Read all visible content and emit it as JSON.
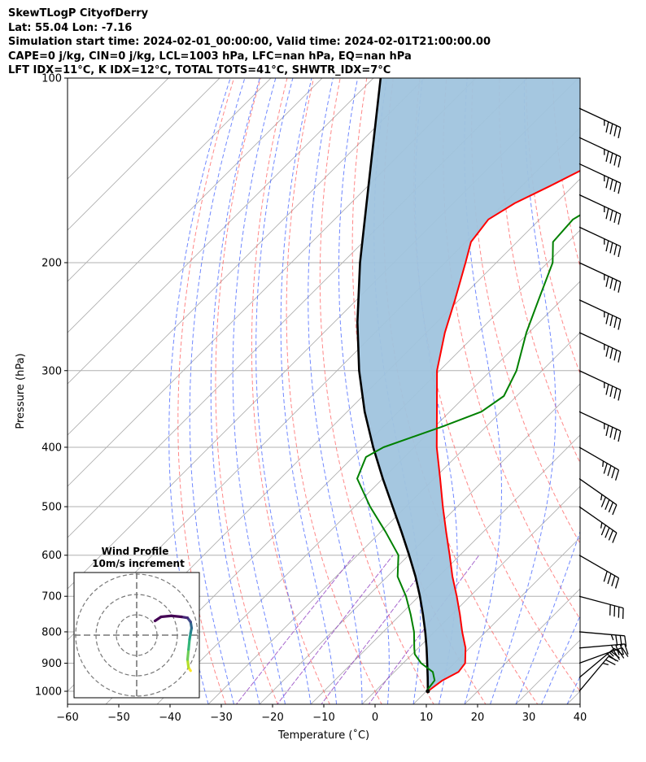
{
  "header": {
    "line1": "SkewTLogP CityofDerry",
    "line2": "Lat: 55.04   Lon: -7.16",
    "line3": "Simulation start time: 2024-02-01_00:00:00, Valid time: 2024-02-01T21:00:00.00",
    "line4": "CAPE=0 j/kg, CIN=0 j/kg, LCL=1003 hPa, LFC=nan hPa, EQ=nan hPa",
    "line5": "LFT IDX=11°C, K IDX=12°C, TOTAL TOTS=41°C, SHWTR_IDX=7°C"
  },
  "colors": {
    "temperature": "#ff0000",
    "dewpoint": "#008000",
    "parcel": "#000000",
    "cape_fill": "#a0c4de",
    "dry_adiabat": "#ff6060",
    "moist_adiabat": "#4060ff",
    "mixing_ratio": "#9040c0",
    "isotherm": "#b0b0b0",
    "isobar": "#b0b0b0"
  },
  "chart_data": {
    "type": "skewt",
    "title": "SkewTLogP CityofDerry",
    "xlabel": "Temperature (˚C)",
    "ylabel": "Pressure (hPa)",
    "xlim": [
      -60,
      40
    ],
    "ylim": [
      1050,
      100
    ],
    "xticks": [
      -60,
      -50,
      -40,
      -30,
      -20,
      -10,
      0,
      10,
      20,
      30,
      40
    ],
    "xtick_labels": [
      "−60",
      "−50",
      "−40",
      "−30",
      "−20",
      "−10",
      "0",
      "10",
      "20",
      "30",
      "40"
    ],
    "yticks": [
      1000,
      900,
      800,
      700,
      600,
      500,
      400,
      300,
      200,
      100
    ],
    "ytick_labels": [
      "1000",
      "900",
      "800",
      "700",
      "600",
      "500",
      "400",
      "300",
      "200",
      "100"
    ],
    "temperature": {
      "p": [
        1000,
        960,
        930,
        900,
        850,
        800,
        750,
        700,
        650,
        600,
        550,
        500,
        450,
        400,
        350,
        300,
        260,
        230,
        200,
        185,
        170,
        160,
        150,
        140,
        130,
        120,
        110,
        100
      ],
      "t": [
        10.3,
        11.0,
        12.5,
        12.1,
        9.2,
        5.4,
        1.6,
        -2.6,
        -7.3,
        -12.0,
        -17.2,
        -22.8,
        -28.8,
        -35.6,
        -42.5,
        -50.5,
        -56.4,
        -60.8,
        -66.0,
        -69.0,
        -70.0,
        -68.0,
        -64.5,
        -61.0,
        -58.0,
        -55.5,
        -53.0,
        -50.5
      ]
    },
    "dewpoint": {
      "p": [
        1000,
        960,
        930,
        900,
        870,
        850,
        800,
        750,
        700,
        650,
        600,
        550,
        500,
        450,
        415,
        400,
        370,
        350,
        330,
        300,
        260,
        230,
        200,
        185,
        170,
        150,
        140,
        130,
        120,
        110,
        100
      ],
      "td": [
        10.0,
        9.5,
        7.5,
        3.5,
        0.5,
        -0.8,
        -4.0,
        -8.0,
        -12.5,
        -18.0,
        -22.0,
        -29.0,
        -37.0,
        -45.0,
        -47.5,
        -46.0,
        -38.5,
        -33.8,
        -32.5,
        -35.0,
        -40.5,
        -44.5,
        -49.0,
        -53.0,
        -53.5,
        -49.0,
        -47.5,
        -45.0,
        -46.0,
        -45.0,
        -44.0
      ]
    },
    "parcel": {
      "p": [
        1000,
        950,
        900,
        850,
        800,
        750,
        700,
        650,
        600,
        550,
        500,
        450,
        400,
        350,
        300,
        250,
        200,
        150,
        100
      ],
      "t": [
        10.3,
        7.6,
        4.7,
        1.6,
        -1.8,
        -5.6,
        -9.8,
        -14.5,
        -19.9,
        -25.9,
        -32.6,
        -40.0,
        -48.0,
        -56.6,
        -65.7,
        -75.5,
        -86.6,
        -99.9,
        -118.6
      ]
    },
    "wind_barbs": [
      {
        "p": 1000,
        "speed_kt": 25,
        "dir": 220
      },
      {
        "p": 950,
        "speed_kt": 30,
        "dir": 230
      },
      {
        "p": 900,
        "speed_kt": 35,
        "dir": 250
      },
      {
        "p": 850,
        "speed_kt": 35,
        "dir": 265
      },
      {
        "p": 800,
        "speed_kt": 35,
        "dir": 275
      },
      {
        "p": 700,
        "speed_kt": 40,
        "dir": 285
      },
      {
        "p": 600,
        "speed_kt": 40,
        "dir": 300
      },
      {
        "p": 500,
        "speed_kt": 45,
        "dir": 305
      },
      {
        "p": 450,
        "speed_kt": 45,
        "dir": 305
      },
      {
        "p": 400,
        "speed_kt": 45,
        "dir": 300
      },
      {
        "p": 350,
        "speed_kt": 45,
        "dir": 295
      },
      {
        "p": 300,
        "speed_kt": 45,
        "dir": 295
      },
      {
        "p": 260,
        "speed_kt": 45,
        "dir": 295
      },
      {
        "p": 230,
        "speed_kt": 45,
        "dir": 295
      },
      {
        "p": 200,
        "speed_kt": 45,
        "dir": 295
      },
      {
        "p": 175,
        "speed_kt": 45,
        "dir": 295
      },
      {
        "p": 155,
        "speed_kt": 45,
        "dir": 295
      },
      {
        "p": 138,
        "speed_kt": 45,
        "dir": 295
      },
      {
        "p": 125,
        "speed_kt": 45,
        "dir": 295
      },
      {
        "p": 112,
        "speed_kt": 45,
        "dir": 295
      }
    ],
    "hodograph": {
      "title": "Wind Profile",
      "subtitle": "10m/s increment",
      "ring_spacing_ms": 10,
      "u": [
        26.5,
        25.5,
        25.0,
        25.5,
        26.0,
        26.5,
        27.0,
        26.5,
        25.0,
        22.0,
        17.0,
        12.0,
        9.0
      ],
      "v": [
        -17.5,
        -16.0,
        -12.0,
        -7.0,
        -2.0,
        1.0,
        3.5,
        6.5,
        8.5,
        9.0,
        9.5,
        9.0,
        7.0
      ]
    }
  }
}
